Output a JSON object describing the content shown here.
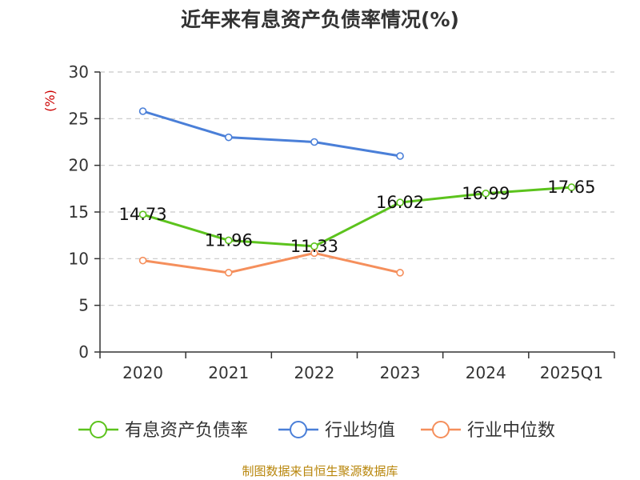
{
  "chart_data": {
    "type": "line",
    "title": "近年来有息资产负债率情况(%)",
    "ylabel": "(%)",
    "categories": [
      "2020",
      "2021",
      "2022",
      "2023",
      "2024",
      "2025Q1"
    ],
    "ylim": [
      0,
      30
    ],
    "yticks": [
      0,
      5,
      10,
      15,
      20,
      25,
      30
    ],
    "grid": true,
    "legend_position": "bottom",
    "series": [
      {
        "name": "有息资产负债率",
        "color": "#5cc31d",
        "show_labels": true,
        "values": [
          14.73,
          11.96,
          11.33,
          16.02,
          16.99,
          17.65
        ]
      },
      {
        "name": "行业均值",
        "color": "#4a7fd8",
        "show_labels": false,
        "values": [
          25.8,
          23.0,
          22.5,
          21.0,
          null,
          null
        ]
      },
      {
        "name": "行业中位数",
        "color": "#f58f5c",
        "show_labels": false,
        "values": [
          9.8,
          8.5,
          10.6,
          8.5,
          null,
          null
        ]
      }
    ],
    "source": "制图数据来自恒生聚源数据库"
  }
}
